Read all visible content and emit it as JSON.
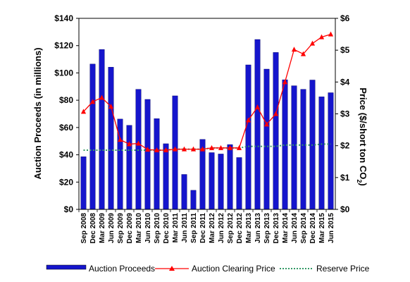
{
  "chart_data": {
    "type": "bar",
    "categories": [
      "Sep 2008",
      "Dec 2008",
      "Mar 2009",
      "Jun 2009",
      "Sep 2009",
      "Dec 2009",
      "Mar 2010",
      "Jun 2010",
      "Sep 2010",
      "Dec 2010",
      "Mar 2011",
      "Jun 2011",
      "Sep 2011",
      "Dec 2011",
      "Mar 2012",
      "Jun 2012",
      "Sep 2012",
      "Dec 2012",
      "Mar 2013",
      "Jun 2013",
      "Sep 2013",
      "Dec 2013",
      "Mar 2014",
      "Jun 2014",
      "Sep 2014",
      "Dec 2014",
      "Mar 2015",
      "Jun 2015"
    ],
    "series": [
      {
        "name": "Auction Proceeds",
        "kind": "bar",
        "axis": "left",
        "color": "#1515cc",
        "values": [
          38.6,
          106.5,
          117.2,
          104.2,
          66.2,
          61.6,
          88.0,
          80.6,
          66.5,
          48.1,
          83.2,
          25.6,
          14.0,
          51.3,
          41.6,
          40.6,
          47.5,
          38.0,
          105.9,
          124.5,
          102.8,
          115.0,
          95.0,
          90.6,
          88.0,
          94.8,
          82.5,
          85.5
        ]
      },
      {
        "name": "Auction Clearing Price",
        "kind": "line",
        "marker": "triangle",
        "axis": "right",
        "color": "#ff0000",
        "values": [
          3.07,
          3.38,
          3.51,
          3.23,
          2.19,
          2.05,
          2.07,
          1.88,
          1.86,
          1.86,
          1.89,
          1.89,
          1.89,
          1.89,
          1.93,
          1.93,
          1.93,
          1.93,
          2.8,
          3.21,
          2.67,
          3.0,
          4.0,
          5.02,
          4.88,
          5.21,
          5.41,
          5.5
        ]
      },
      {
        "name": "Reserve Price",
        "kind": "line",
        "style": "dotted",
        "axis": "right",
        "color": "#339966",
        "values": [
          1.86,
          1.86,
          1.86,
          1.86,
          1.86,
          1.86,
          1.86,
          1.86,
          1.86,
          1.86,
          1.89,
          1.89,
          1.89,
          1.89,
          1.93,
          1.93,
          1.93,
          1.93,
          1.98,
          1.98,
          1.98,
          1.98,
          2.02,
          2.02,
          2.02,
          2.02,
          2.05,
          2.05
        ]
      }
    ],
    "ylabel": "Auction Proceeds (in millions)",
    "y2label": "Price ($/short ton CO",
    "y2label_sub": "2",
    "y2label_end": ")",
    "ylim": [
      0,
      140
    ],
    "y2lim": [
      0,
      6
    ],
    "y_ticks": [
      "$0",
      "$20",
      "$40",
      "$60",
      "$80",
      "$100",
      "$120",
      "$140"
    ],
    "y2_ticks": [
      "$0",
      "$1",
      "$2",
      "$3",
      "$4",
      "$5",
      "$6"
    ],
    "grid": false,
    "legend_position": "bottom"
  }
}
